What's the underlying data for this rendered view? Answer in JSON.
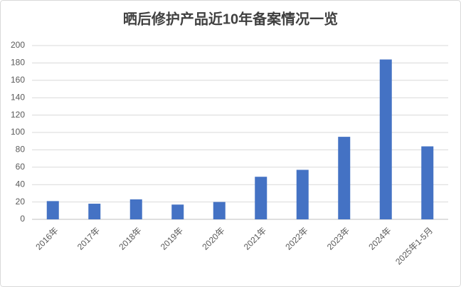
{
  "chart_data": {
    "type": "bar",
    "title": "晒后修护产品近10年备案情况一览",
    "categories": [
      "2016年",
      "2017年",
      "2018年",
      "2019年",
      "2020年",
      "2021年",
      "2022年",
      "2023年",
      "2024年",
      "2025年1-5月"
    ],
    "values": [
      21,
      18,
      23,
      17,
      20,
      49,
      57,
      95,
      184,
      84
    ],
    "color": "#4472c4",
    "ylim": [
      0,
      200
    ],
    "yticks": [
      0,
      20,
      40,
      60,
      80,
      100,
      120,
      140,
      160,
      180,
      200
    ],
    "grid": true
  }
}
